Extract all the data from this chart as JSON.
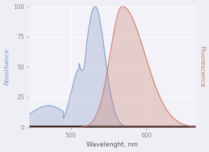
{
  "xlabel": "Wavelenght, nm",
  "ylabel_left": "Absorbance",
  "ylabel_right": "Fluorescence",
  "xlim": [
    445,
    665
  ],
  "ylim": [
    0,
    100
  ],
  "yticks": [
    0,
    25,
    50,
    75,
    100
  ],
  "xticks": [
    500,
    600
  ],
  "background_color": "#eeeef5",
  "plot_bg_color": "#f2f2f8",
  "excitation_line_color": "#7799cc",
  "excitation_fill_color": "#99aacc",
  "emission_line_color": "#cc7766",
  "emission_fill_color": "#cc8877",
  "bottom_bar_color": "#222222",
  "grid_color": "#ffffff",
  "tick_label_color": "#888888",
  "xlabel_color": "#555555"
}
